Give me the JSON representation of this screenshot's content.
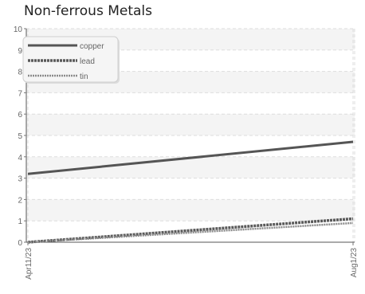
{
  "chart_data": {
    "type": "line",
    "title": "Non-ferrous Metals",
    "xlabel": "",
    "ylabel": "",
    "x": [
      "Apr11/23",
      "Aug1/23"
    ],
    "ylim": [
      0,
      10
    ],
    "yticks": [
      0,
      1,
      2,
      3,
      4,
      5,
      6,
      7,
      8,
      9,
      10
    ],
    "grid": true,
    "legend_position": "top-left",
    "series": [
      {
        "name": "copper",
        "values": [
          3.2,
          4.7
        ],
        "color": "#555555",
        "style": "solid"
      },
      {
        "name": "lead",
        "values": [
          0.0,
          1.1
        ],
        "color": "#5a5a5a",
        "style": "dashed"
      },
      {
        "name": "tin",
        "values": [
          0.0,
          0.9
        ],
        "color": "#8a8a8a",
        "style": "dotted"
      }
    ]
  }
}
